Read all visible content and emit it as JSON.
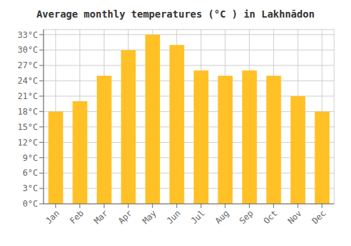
{
  "chart_data": {
    "type": "bar",
    "title": "Average monthly temperatures (°C ) in Lakhnādon",
    "categories": [
      "Jan",
      "Feb",
      "Mar",
      "Apr",
      "May",
      "Jun",
      "Jul",
      "Aug",
      "Sep",
      "Oct",
      "Nov",
      "Dec"
    ],
    "values": [
      18,
      20,
      25,
      30,
      33,
      31,
      26,
      25,
      26,
      25,
      21,
      18
    ],
    "color": "#FFC125",
    "ylim": [
      0,
      34
    ],
    "yticks": [
      {
        "value": 0,
        "label": "0°C"
      },
      {
        "value": 3,
        "label": "3°C"
      },
      {
        "value": 6,
        "label": "6°C"
      },
      {
        "value": 9,
        "label": "9°C"
      },
      {
        "value": 12,
        "label": "12°C"
      },
      {
        "value": 15,
        "label": "15°C"
      },
      {
        "value": 18,
        "label": "18°C"
      },
      {
        "value": 21,
        "label": "21°C"
      },
      {
        "value": 24,
        "label": "24°C"
      },
      {
        "value": 27,
        "label": "27°C"
      },
      {
        "value": 30,
        "label": "30°C"
      },
      {
        "value": 33,
        "label": "33°C"
      }
    ],
    "grid": true
  }
}
